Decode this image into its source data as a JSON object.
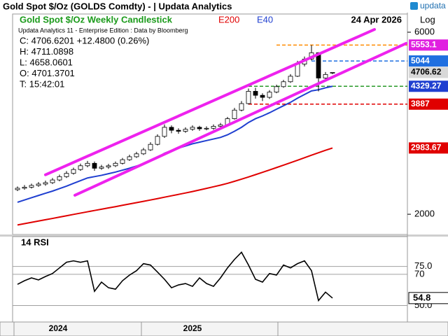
{
  "header": {
    "title": "Gold Spot  $/Oz (GOLDS Comdty) - | Updata Analytics",
    "logo": "updata"
  },
  "chart_data": [
    {
      "type": "candlestick",
      "title": "Gold Spot  $/Oz Weekly Candlestick",
      "subtitle": "Updata Analytics 11 - Enterprise Edition : Data by Bloomberg",
      "date": "24 Apr 2026",
      "info": [
        "C: 4706.6201  +12.4800 (0.26%)",
        "H: 4711.0898",
        "L: 4658.0601",
        "O: 4701.3701",
        "T: 15:42:01"
      ],
      "open": [
        2320,
        2340,
        2355,
        2380,
        2400,
        2420,
        2460,
        2510,
        2560,
        2620,
        2680,
        2720,
        2640,
        2660,
        2680,
        2720,
        2780,
        2830,
        2880,
        2950,
        3050,
        3200,
        3380,
        3320,
        3300,
        3340,
        3380,
        3350,
        3360,
        3400,
        3430,
        3560,
        3750,
        3900,
        4200,
        4100,
        4050,
        4180,
        4320,
        4450,
        4600,
        4950,
        5100,
        5300,
        4550,
        4701.3701
      ],
      "high": [
        2365,
        2385,
        2405,
        2430,
        2450,
        2490,
        2540,
        2595,
        2650,
        2715,
        2760,
        2750,
        2695,
        2710,
        2750,
        2810,
        2865,
        2915,
        2985,
        3090,
        3240,
        3440,
        3420,
        3360,
        3380,
        3420,
        3410,
        3400,
        3440,
        3470,
        3600,
        3800,
        3960,
        4270,
        4290,
        4150,
        4230,
        4370,
        4500,
        4660,
        5050,
        5180,
        5553.1,
        5320,
        4720,
        4711.0898
      ],
      "low": [
        2300,
        2320,
        2335,
        2360,
        2375,
        2400,
        2440,
        2490,
        2540,
        2600,
        2655,
        2600,
        2615,
        2630,
        2660,
        2700,
        2760,
        2810,
        2860,
        2930,
        3030,
        3170,
        3260,
        3250,
        3270,
        3310,
        3310,
        3320,
        3330,
        3370,
        3410,
        3540,
        3720,
        3880,
        4020,
        3960,
        4010,
        4150,
        4290,
        4420,
        4580,
        4880,
        5060,
        4200,
        4480,
        4658.0601
      ],
      "close": [
        2340,
        2355,
        2380,
        2400,
        2420,
        2460,
        2510,
        2560,
        2620,
        2680,
        2720,
        2640,
        2660,
        2680,
        2720,
        2780,
        2830,
        2880,
        2950,
        3050,
        3200,
        3380,
        3320,
        3300,
        3340,
        3380,
        3350,
        3360,
        3400,
        3430,
        3560,
        3750,
        3900,
        4200,
        4100,
        4050,
        4180,
        4320,
        4450,
        4600,
        4950,
        5100,
        5300,
        4550,
        4650,
        4706.6201
      ],
      "up_color": "#ffffff",
      "down_color": "#000000",
      "series": [
        {
          "name": "E200",
          "color": "#e00000",
          "values": [
            1875,
            1890,
            1905,
            1920,
            1935,
            1950,
            1966,
            1982,
            1998,
            2014,
            2030,
            2046,
            2062,
            2078,
            2094,
            2111,
            2128,
            2145,
            2162,
            2180,
            2198,
            2217,
            2236,
            2255,
            2274,
            2294,
            2316,
            2338,
            2361,
            2384,
            2410,
            2440,
            2472,
            2505,
            2540,
            2576,
            2613,
            2651,
            2690,
            2730,
            2771,
            2813,
            2856,
            2899,
            2942,
            2983.67
          ]
        },
        {
          "name": "E40",
          "color": "#1f3fd0",
          "values": [
            2150,
            2180,
            2210,
            2240,
            2270,
            2300,
            2335,
            2370,
            2410,
            2450,
            2490,
            2510,
            2530,
            2555,
            2580,
            2610,
            2640,
            2675,
            2710,
            2760,
            2820,
            2890,
            2940,
            2980,
            3020,
            3060,
            3090,
            3120,
            3150,
            3180,
            3230,
            3300,
            3380,
            3480,
            3560,
            3620,
            3690,
            3770,
            3850,
            3930,
            4030,
            4120,
            4210,
            4240,
            4290,
            4329.27
          ]
        }
      ],
      "trendlines": [
        {
          "color": "#ee22ee",
          "x": [
            4,
            51
          ],
          "values": [
            2538,
            6100
          ]
        },
        {
          "color": "#ee22ee",
          "x": [
            8.2,
            55.5
          ],
          "values": [
            2243,
            5608
          ]
        }
      ],
      "levels": [
        {
          "value": 5553.1,
          "color": "#e020e0",
          "line": "#ff8c00",
          "start": 37
        },
        {
          "value": 5044,
          "color": "#1f6fe0",
          "line": "#1f6fe0",
          "start": 42
        },
        {
          "value": 4706.62,
          "color": "#d8d8d8",
          "line": null,
          "start": null
        },
        {
          "value": 4329.27,
          "color": "#1f3fd0",
          "line": "#2a9a2a",
          "start": 33
        },
        {
          "value": 3887,
          "color": "#e00000",
          "line": "#e00000",
          "start": 33
        },
        {
          "value": 2983.67,
          "color": "#e00000",
          "line": null,
          "start": null
        }
      ],
      "log": true,
      "axis_label": "Log",
      "ylim": [
        1770,
        6697
      ],
      "yticks": [
        6000,
        2000
      ],
      "xlim": [
        -0.7,
        55.7
      ],
      "xticks": [
        -0.5,
        17.7,
        37.2
      ],
      "xlabels": [
        {
          "at": 5.8,
          "label": "2024"
        },
        {
          "at": 25,
          "label": "2025"
        }
      ]
    },
    {
      "type": "line",
      "title": "14 RSI",
      "color": "#000000",
      "values": [
        63.6,
        65.9,
        67.7,
        66.4,
        68.6,
        70.5,
        74.1,
        77.7,
        78.6,
        77.7,
        78.6,
        59.1,
        65.0,
        61.4,
        60.5,
        65.9,
        69.5,
        72.3,
        76.8,
        75.9,
        71.4,
        66.8,
        61.4,
        63.2,
        64.1,
        62.3,
        67.7,
        64.1,
        62.3,
        67.7,
        74.1,
        79.5,
        84.1,
        75.9,
        66.8,
        65.0,
        70.5,
        69.5,
        75.9,
        74.1,
        76.8,
        78.6,
        72.3,
        53.2,
        58.6,
        54.8
      ],
      "ylim": [
        39.5,
        94.1
      ],
      "yticks": [
        {
          "value": 75,
          "label": "75.0"
        },
        70,
        {
          "value": 50,
          "label": "50.0"
        }
      ]
    }
  ]
}
